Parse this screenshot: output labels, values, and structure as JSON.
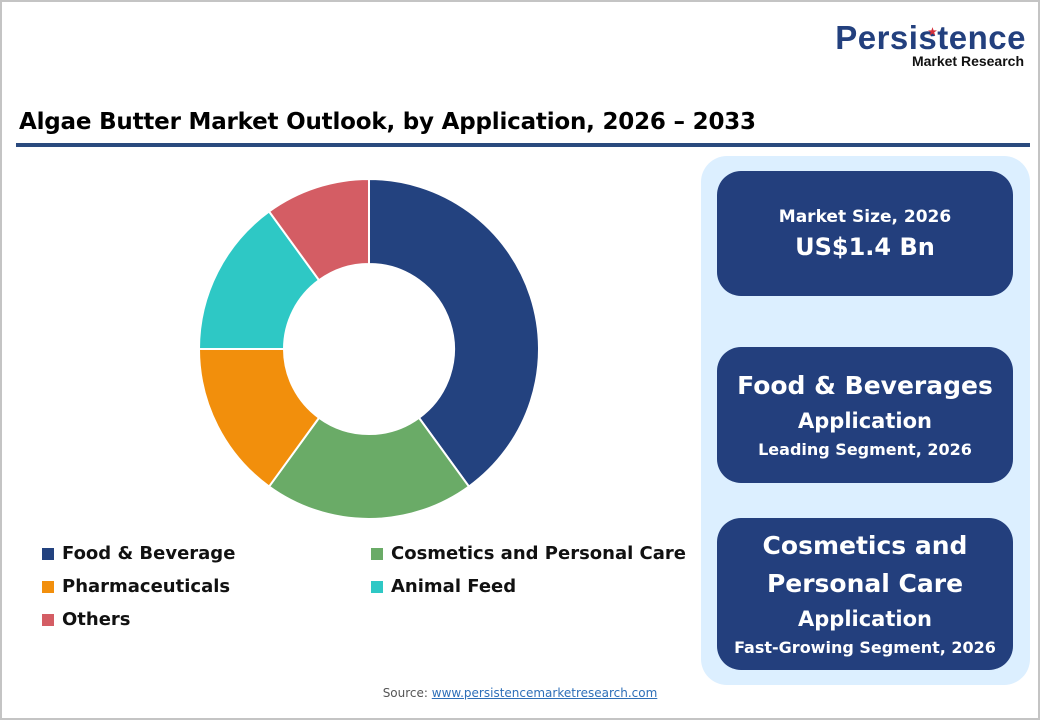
{
  "logo": {
    "main": "Persistence",
    "sub": "Market Research",
    "star": "★"
  },
  "title": "Algae Butter Market Outlook, by Application, 2026 – 2033",
  "colors": {
    "brand_navy": "#233f7d",
    "panel_bg": "#dcefff",
    "rule": "#2a4a7e"
  },
  "chart_data": {
    "type": "pie",
    "subtype": "donut",
    "title": "Algae Butter Market Outlook, by Application, 2026 – 2033",
    "categories": [
      "Food & Beverage",
      "Cosmetics and Personal Care",
      "Pharmaceuticals",
      "Animal Feed",
      "Others"
    ],
    "values": [
      40,
      20,
      15,
      15,
      10
    ],
    "unit": "% share (estimated from slice angles)",
    "colors": [
      "#23427f",
      "#6aab67",
      "#f28f0c",
      "#2ec8c5",
      "#d45d64"
    ],
    "legend_position": "bottom",
    "start_angle": "12 o'clock, clockwise"
  },
  "legend": [
    {
      "label": "Food & Beverage",
      "color": "#23427f"
    },
    {
      "label": "Cosmetics and Personal Care",
      "color": "#6aab67"
    },
    {
      "label": "Pharmaceuticals",
      "color": "#f28f0c"
    },
    {
      "label": "Animal Feed",
      "color": "#2ec8c5"
    },
    {
      "label": "Others",
      "color": "#d45d64"
    }
  ],
  "cards": {
    "market_size": {
      "label": "Market Size, 2026",
      "value": "US$1.4 Bn"
    },
    "leading": {
      "line1": "Food & Beverages",
      "line2": "Application",
      "line3": "Leading Segment, 2026"
    },
    "fast_growing": {
      "line1": "Cosmetics and",
      "line2": "Personal Care",
      "line3": "Application",
      "line4": "Fast-Growing Segment, 2026"
    }
  },
  "source": {
    "prefix": "Source: ",
    "link_text": "www.persistencemarketresearch.com"
  }
}
